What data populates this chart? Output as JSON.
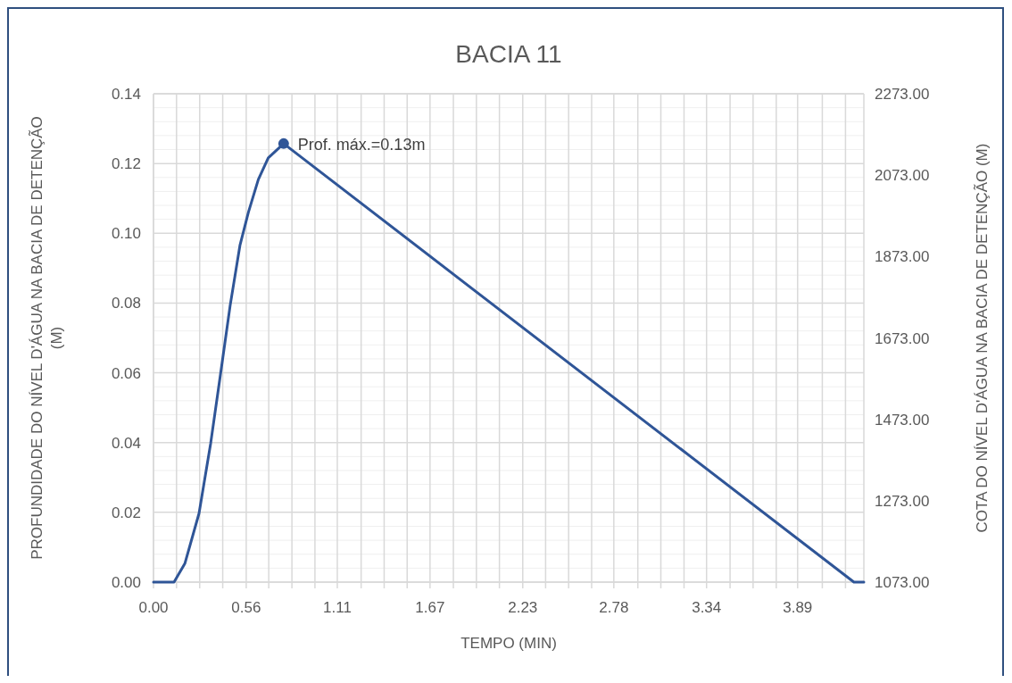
{
  "chart_data": {
    "type": "line",
    "title": "BACIA 11",
    "xlabel": "TEMPO (MIN)",
    "ylabel": "PROFUNDIDADE DO NÍVEL D'ÁGUA NA BACIA DE DETENÇÃO (M)",
    "y2label": "COTA DO NÍVEL D'ÁGUA NA BACIA DE DETENÇÃO (M)",
    "xlim": [
      0,
      4.29
    ],
    "xticks": [
      {
        "value": 0,
        "label": "0.00"
      },
      {
        "value": 0.139,
        "label": null
      },
      {
        "value": 0.279,
        "label": null
      },
      {
        "value": 0.418,
        "label": null
      },
      {
        "value": 0.56,
        "label": "0.56"
      },
      {
        "value": 0.696,
        "label": null
      },
      {
        "value": 0.836,
        "label": null
      },
      {
        "value": 0.975,
        "label": null
      },
      {
        "value": 1.11,
        "label": "1.11"
      },
      {
        "value": 1.254,
        "label": null
      },
      {
        "value": 1.393,
        "label": null
      },
      {
        "value": 1.532,
        "label": null
      },
      {
        "value": 1.67,
        "label": "1.67"
      },
      {
        "value": 1.811,
        "label": null
      },
      {
        "value": 1.95,
        "label": null
      },
      {
        "value": 2.089,
        "label": null
      },
      {
        "value": 2.23,
        "label": "2.23"
      },
      {
        "value": 2.368,
        "label": null
      },
      {
        "value": 2.507,
        "label": null
      },
      {
        "value": 2.646,
        "label": null
      },
      {
        "value": 2.78,
        "label": "2.78"
      },
      {
        "value": 2.925,
        "label": null
      },
      {
        "value": 3.064,
        "label": null
      },
      {
        "value": 3.204,
        "label": null
      },
      {
        "value": 3.34,
        "label": "3.34"
      },
      {
        "value": 3.482,
        "label": null
      },
      {
        "value": 3.621,
        "label": null
      },
      {
        "value": 3.761,
        "label": null
      },
      {
        "value": 3.89,
        "label": "3.89"
      },
      {
        "value": 4.039,
        "label": null
      },
      {
        "value": 4.179,
        "label": null
      }
    ],
    "ylim": [
      0,
      0.14
    ],
    "yticks": [
      {
        "value": 0,
        "label": "0.00"
      },
      {
        "value": 0.004,
        "label": null
      },
      {
        "value": 0.008,
        "label": null
      },
      {
        "value": 0.012,
        "label": null
      },
      {
        "value": 0.016,
        "label": null
      },
      {
        "value": 0.02,
        "label": "0.02"
      },
      {
        "value": 0.024,
        "label": null
      },
      {
        "value": 0.028,
        "label": null
      },
      {
        "value": 0.032,
        "label": null
      },
      {
        "value": 0.036,
        "label": null
      },
      {
        "value": 0.04,
        "label": "0.04"
      },
      {
        "value": 0.044,
        "label": null
      },
      {
        "value": 0.048,
        "label": null
      },
      {
        "value": 0.052,
        "label": null
      },
      {
        "value": 0.056,
        "label": null
      },
      {
        "value": 0.06,
        "label": "0.06"
      },
      {
        "value": 0.064,
        "label": null
      },
      {
        "value": 0.068,
        "label": null
      },
      {
        "value": 0.072,
        "label": null
      },
      {
        "value": 0.076,
        "label": null
      },
      {
        "value": 0.08,
        "label": "0.08"
      },
      {
        "value": 0.084,
        "label": null
      },
      {
        "value": 0.088,
        "label": null
      },
      {
        "value": 0.092,
        "label": null
      },
      {
        "value": 0.096,
        "label": null
      },
      {
        "value": 0.1,
        "label": "0.10"
      },
      {
        "value": 0.104,
        "label": null
      },
      {
        "value": 0.108,
        "label": null
      },
      {
        "value": 0.112,
        "label": null
      },
      {
        "value": 0.116,
        "label": null
      },
      {
        "value": 0.12,
        "label": "0.12"
      },
      {
        "value": 0.124,
        "label": null
      },
      {
        "value": 0.128,
        "label": null
      },
      {
        "value": 0.132,
        "label": null
      },
      {
        "value": 0.136,
        "label": null
      },
      {
        "value": 0.14,
        "label": "0.14"
      }
    ],
    "y2lim": [
      1073,
      2273
    ],
    "y2ticks": [
      {
        "value": 1073,
        "label": "1073.00"
      },
      {
        "value": 1273,
        "label": "1273.00"
      },
      {
        "value": 1473,
        "label": "1473.00"
      },
      {
        "value": 1673,
        "label": "1673.00"
      },
      {
        "value": 1873,
        "label": "1873.00"
      },
      {
        "value": 2073,
        "label": "2073.00"
      },
      {
        "value": 2273,
        "label": "2273.00"
      }
    ],
    "grid": true,
    "series": [
      {
        "color": "#2f5597",
        "marker": "none",
        "x": [
          0,
          0.124,
          0.19,
          0.275,
          0.345,
          0.404,
          0.463,
          0.522,
          0.573,
          0.633,
          0.693,
          0.786,
          4.23,
          4.29
        ],
        "values": [
          0,
          0,
          0.0054,
          0.0197,
          0.0397,
          0.0594,
          0.0793,
          0.0965,
          0.106,
          0.1154,
          0.1216,
          0.1257,
          0,
          0
        ]
      },
      {
        "type": "scatter",
        "color": "#2f5597",
        "marker": "circle",
        "x": [
          0.786
        ],
        "values": [
          0.1257
        ]
      }
    ],
    "annotations": [
      {
        "text": "Prof. máx.=0.13m",
        "x": 0.786,
        "y": 0.1257
      }
    ]
  }
}
